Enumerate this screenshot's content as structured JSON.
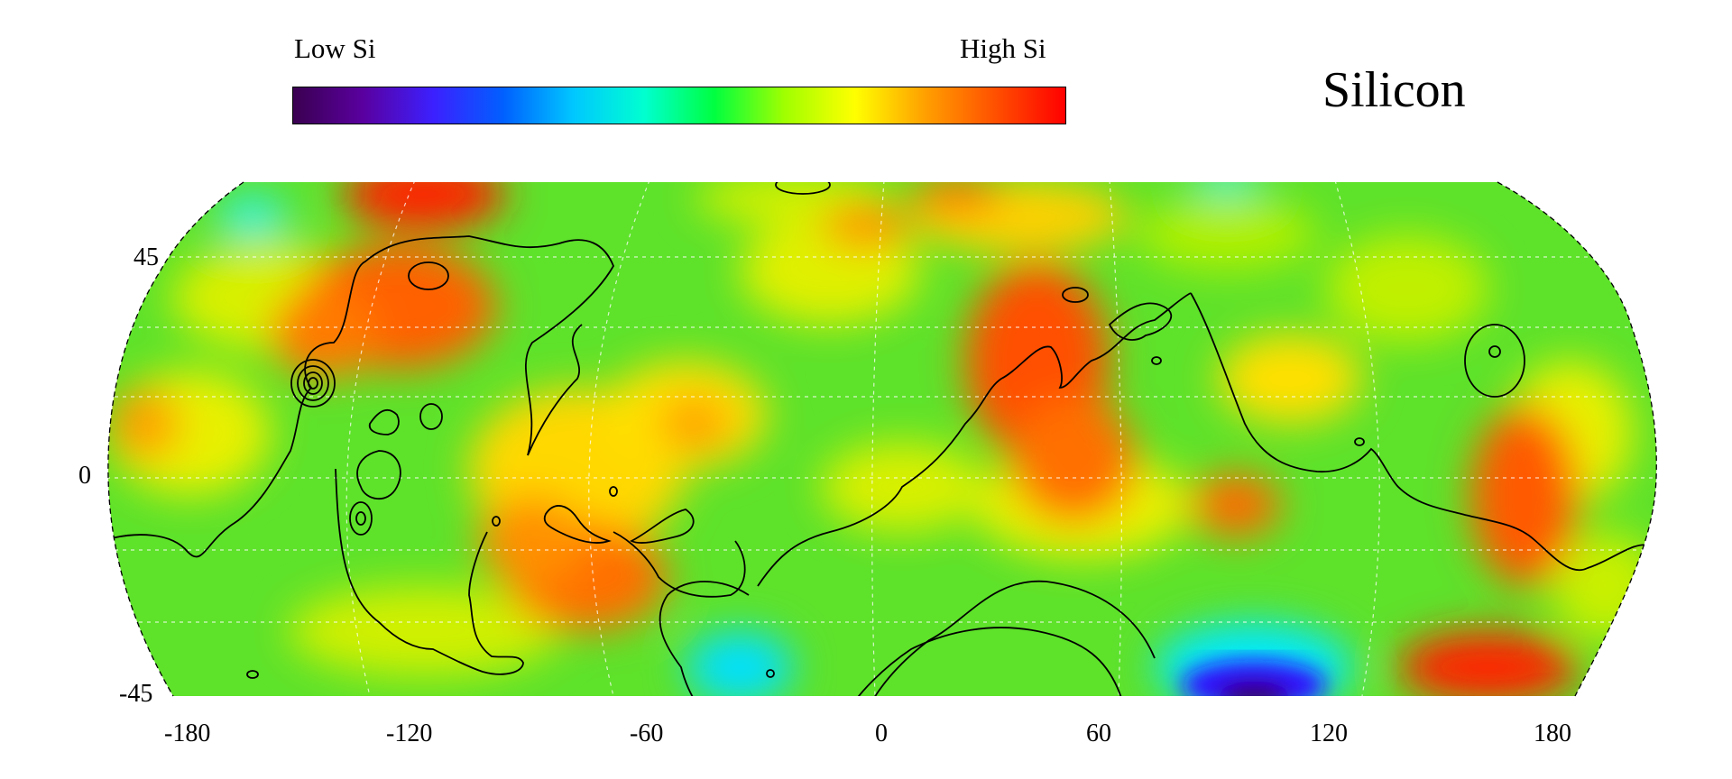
{
  "legend": {
    "low_label": "Low Si",
    "high_label": "High Si",
    "colors": [
      "#3a0050",
      "#5a00a0",
      "#3c20ff",
      "#0060ff",
      "#00c8ff",
      "#00ffd0",
      "#00ff40",
      "#a0ff00",
      "#ffff00",
      "#ffa000",
      "#ff5000",
      "#ff0000"
    ]
  },
  "title": "Silicon",
  "map": {
    "projection": "equal-area oval (Robinson-like), longitude -180 to 180",
    "lat_ticks": [
      "45",
      "0",
      "-45"
    ],
    "lon_ticks": [
      "-180",
      "-120",
      "-60",
      "0",
      "60",
      "120",
      "180"
    ],
    "graticule": "dashed white",
    "contours": "black elevation contour lines",
    "colors": {
      "background_field": "#5ee22a",
      "high": "#ff3a00",
      "mid_high": "#ffd000",
      "low": "#00e8ff",
      "lowest": "#3a10c0"
    }
  }
}
